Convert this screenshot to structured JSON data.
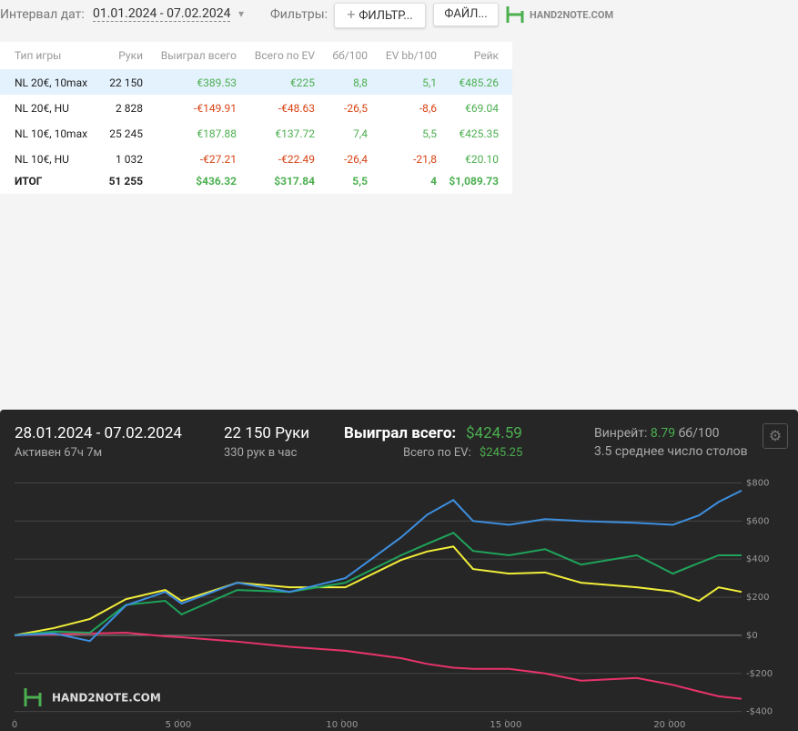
{
  "toolbar": {
    "interval_label": "Интервал дат:",
    "date_range": "01.01.2024 - 07.02.2024",
    "filters_label": "Фильтры:",
    "filter_button": "ФИЛЬТР...",
    "files_button": "ФАЙЛ...",
    "logo": "HAND2NOTE.COM"
  },
  "table": {
    "headers": [
      "Тип игры",
      "Руки",
      "Выиграл всего",
      "Всего по EV",
      "бб/100",
      "EV bb/100",
      "Рейк"
    ],
    "rows": [
      [
        "NL 20€, 10max",
        "22 150",
        "€389.53",
        "€225",
        "8,8",
        "5,1",
        "€485.26"
      ],
      [
        "NL 20€, HU",
        "2 828",
        "-€149.91",
        "-€48.63",
        "-26,5",
        "-8,6",
        "€69.04"
      ],
      [
        "NL 10€, 10max",
        "25 245",
        "€187.88",
        "€137.72",
        "7,4",
        "5,5",
        "€425.35"
      ],
      [
        "NL 10€, HU",
        "1 032",
        "-€27.21",
        "-€22.49",
        "-26,4",
        "-21,8",
        "€20.10"
      ]
    ],
    "total": [
      "ИТОГ",
      "51 255",
      "$436.32",
      "$317.84",
      "5,5",
      "4",
      "$1,089.73"
    ]
  },
  "summary": {
    "date_range": "28.01.2024 - 07.02.2024",
    "active": "Активен 67ч 7м",
    "hands": "22 150 Руки",
    "hands_per_hour": "330 рук в час",
    "won_label": "Выиграл всего:",
    "won_value": "$424.59",
    "ev_label": "Всего по EV:",
    "ev_value": "$245.25",
    "winrate_label": "Винрейт:",
    "winrate_value": "8.79",
    "winrate_unit": "бб/100",
    "tables": "3.5 среднее число столов",
    "logo": "HAND2NOTE.COM"
  },
  "chart_data": {
    "type": "line",
    "x": [
      0,
      1200,
      2300,
      3400,
      4600,
      5100,
      6800,
      8400,
      10100,
      11800,
      12600,
      13400,
      14000,
      15100,
      16200,
      17300,
      19000,
      20100,
      20900,
      21500,
      22200
    ],
    "series": [
      {
        "color": "#e8336b",
        "values": [
          0,
          5,
          10,
          14,
          -5,
          -10,
          -33,
          -60,
          -81,
          -120,
          -150,
          -170,
          -176,
          -176,
          -200,
          -238,
          -224,
          -260,
          -295,
          -320,
          -333
        ]
      },
      {
        "color": "#f2ee3a",
        "values": [
          0,
          38,
          86,
          190,
          238,
          181,
          276,
          252,
          252,
          395,
          440,
          466,
          348,
          324,
          330,
          276,
          252,
          230,
          181,
          252,
          228
        ]
      },
      {
        "color": "#1fa35a",
        "values": [
          0,
          20,
          14,
          160,
          181,
          110,
          238,
          228,
          276,
          420,
          480,
          538,
          443,
          420,
          452,
          371,
          420,
          324,
          380,
          420,
          420
        ]
      },
      {
        "color": "#3d8fe0",
        "values": [
          0,
          10,
          -30,
          157,
          228,
          167,
          276,
          228,
          300,
          514,
          633,
          710,
          600,
          580,
          610,
          600,
          590,
          580,
          630,
          700,
          760
        ]
      }
    ],
    "xlim": [
      0,
      22200
    ],
    "ylim": [
      -440,
      850
    ],
    "xticks": [
      0,
      {
        "value": 5000,
        "label": "5 000"
      },
      {
        "value": 10000,
        "label": "10 000"
      },
      {
        "value": 15000,
        "label": "15 000"
      },
      {
        "value": 20000,
        "label": "20 000"
      }
    ],
    "yticks": [
      {
        "value": -400,
        "label": "-$400"
      },
      {
        "value": -200,
        "label": "-$200"
      },
      {
        "value": 0,
        "label": "$0"
      },
      {
        "value": 200,
        "label": "$200"
      },
      {
        "value": 400,
        "label": "$400"
      },
      {
        "value": 600,
        "label": "$600"
      },
      {
        "value": 800,
        "label": "$800"
      }
    ],
    "grid": true
  }
}
